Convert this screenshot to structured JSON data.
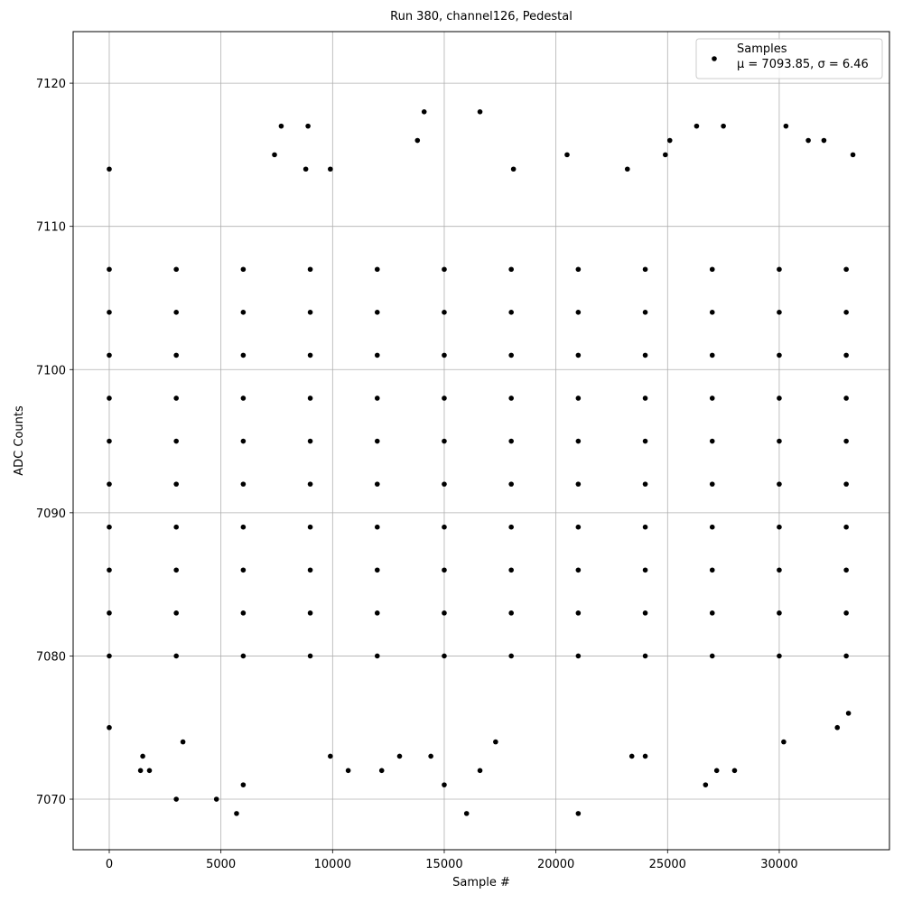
{
  "chart_data": {
    "type": "scatter",
    "title": "Run 380, channel126, Pedestal",
    "xlabel": "Sample #",
    "ylabel": "ADC Counts",
    "xlim": [
      -1617,
      34935
    ],
    "ylim": [
      7066.47,
      7123.6
    ],
    "xticks": [
      0,
      5000,
      10000,
      15000,
      20000,
      25000,
      30000
    ],
    "yticks": [
      7070,
      7080,
      7090,
      7100,
      7110,
      7120
    ],
    "grid": true,
    "legend": "upper right",
    "legend_note": "μ = 7093.85, σ = 6.46",
    "series": [
      {
        "name": "Samples",
        "color": "#000000",
        "x": [
          0,
          3000,
          6000,
          9000,
          12000,
          15000,
          18000,
          21000,
          24000,
          27000,
          30000,
          33000,
          0,
          3000,
          6000,
          9000,
          12000,
          15000,
          18000,
          21000,
          24000,
          27000,
          30000,
          33000,
          0,
          3000,
          6000,
          9000,
          12000,
          15000,
          18000,
          21000,
          24000,
          27000,
          30000,
          33000,
          0,
          3000,
          6000,
          9000,
          12000,
          15000,
          18000,
          21000,
          24000,
          27000,
          30000,
          33000,
          0,
          3000,
          6000,
          9000,
          12000,
          15000,
          18000,
          21000,
          24000,
          27000,
          30000,
          33000,
          0,
          3000,
          6000,
          9000,
          12000,
          15000,
          18000,
          21000,
          24000,
          27000,
          30000,
          33000,
          0,
          3000,
          6000,
          9000,
          12000,
          15000,
          18000,
          21000,
          24000,
          27000,
          30000,
          33000,
          0,
          3000,
          6000,
          9000,
          12000,
          15000,
          18000,
          21000,
          24000,
          27000,
          30000,
          33000,
          0,
          3000,
          6000,
          9000,
          12000,
          15000,
          18000,
          21000,
          24000,
          27000,
          30000,
          33000,
          0,
          3000,
          6000,
          9000,
          12000,
          15000,
          18000,
          21000,
          24000,
          27000,
          30000,
          33000,
          0,
          0,
          3000,
          4800,
          5700,
          6000,
          1400,
          1800,
          7700,
          8900,
          7400,
          14100,
          13800,
          16600,
          16000,
          21000,
          15000,
          16600,
          20500,
          25100,
          26300,
          27500,
          30300,
          31300,
          32000,
          33300,
          26700,
          27200,
          28000,
          30200,
          32600,
          10700,
          12200,
          9900,
          14400,
          13000,
          24000,
          23400,
          33100,
          3300,
          1500,
          17300,
          8800,
          9900,
          24900,
          23200,
          18100
        ],
        "values": [
          7080,
          7080,
          7080,
          7080,
          7080,
          7080,
          7080,
          7080,
          7080,
          7080,
          7080,
          7080,
          7083,
          7083,
          7083,
          7083,
          7083,
          7083,
          7083,
          7083,
          7083,
          7083,
          7083,
          7083,
          7086,
          7086,
          7086,
          7086,
          7086,
          7086,
          7086,
          7086,
          7086,
          7086,
          7086,
          7086,
          7089,
          7089,
          7089,
          7089,
          7089,
          7089,
          7089,
          7089,
          7089,
          7089,
          7089,
          7089,
          7092,
          7092,
          7092,
          7092,
          7092,
          7092,
          7092,
          7092,
          7092,
          7092,
          7092,
          7092,
          7095,
          7095,
          7095,
          7095,
          7095,
          7095,
          7095,
          7095,
          7095,
          7095,
          7095,
          7095,
          7098,
          7098,
          7098,
          7098,
          7098,
          7098,
          7098,
          7098,
          7098,
          7098,
          7098,
          7098,
          7101,
          7101,
          7101,
          7101,
          7101,
          7101,
          7101,
          7101,
          7101,
          7101,
          7101,
          7101,
          7104,
          7104,
          7104,
          7104,
          7104,
          7104,
          7104,
          7104,
          7104,
          7104,
          7104,
          7104,
          7107,
          7107,
          7107,
          7107,
          7107,
          7107,
          7107,
          7107,
          7107,
          7107,
          7107,
          7107,
          7114,
          7075,
          7070,
          7070,
          7069,
          7071,
          7072,
          7072,
          7117,
          7117,
          7115,
          7118,
          7116,
          7118,
          7069,
          7069,
          7071,
          7072,
          7115,
          7116,
          7117,
          7117,
          7117,
          7116,
          7116,
          7115,
          7071,
          7072,
          7072,
          7074,
          7075,
          7072,
          7072,
          7073,
          7073,
          7073,
          7073,
          7073,
          7076,
          7074,
          7073,
          7074,
          7114,
          7114,
          7115,
          7114,
          7114
        ]
      }
    ]
  }
}
